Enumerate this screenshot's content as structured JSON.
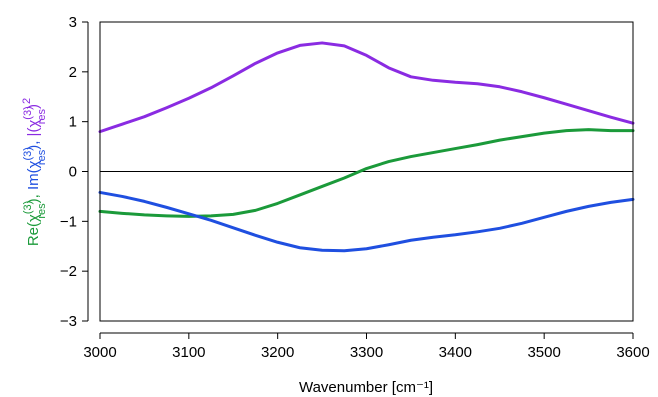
{
  "chart_data": {
    "type": "line",
    "title": "",
    "xlabel": "Wavenumber [cm⁻¹]",
    "ylabel_parts": {
      "re_prefix": "Re(χ",
      "im_prefix": "Im(χ",
      "abs_prefix": "|(χ",
      "superscript": "(3)",
      "subscript": "res",
      "close": ")",
      "separator": ", ",
      "square": "2"
    },
    "xlim": [
      3000,
      3600
    ],
    "ylim": [
      -3,
      3
    ],
    "xticks": [
      3000,
      3100,
      3200,
      3300,
      3400,
      3500,
      3600
    ],
    "yticks": [
      -3,
      -2,
      -1,
      0,
      1,
      2,
      3
    ],
    "zero_line": true,
    "grid": false,
    "series": [
      {
        "key": "abs",
        "color": "#8a2be2",
        "x": [
          3000,
          3025,
          3050,
          3075,
          3100,
          3125,
          3150,
          3175,
          3200,
          3225,
          3250,
          3275,
          3300,
          3325,
          3350,
          3375,
          3400,
          3425,
          3450,
          3475,
          3500,
          3525,
          3550,
          3575,
          3600
        ],
        "y": [
          0.8,
          0.95,
          1.1,
          1.28,
          1.47,
          1.68,
          1.92,
          2.17,
          2.38,
          2.53,
          2.58,
          2.52,
          2.33,
          2.08,
          1.9,
          1.83,
          1.79,
          1.76,
          1.7,
          1.6,
          1.48,
          1.35,
          1.22,
          1.09,
          0.97
        ]
      },
      {
        "key": "re",
        "color": "#1b9a3a",
        "x": [
          3000,
          3025,
          3050,
          3075,
          3100,
          3125,
          3150,
          3175,
          3200,
          3225,
          3250,
          3275,
          3300,
          3325,
          3350,
          3375,
          3400,
          3425,
          3450,
          3475,
          3500,
          3525,
          3550,
          3575,
          3600
        ],
        "y": [
          -0.8,
          -0.84,
          -0.87,
          -0.89,
          -0.9,
          -0.89,
          -0.86,
          -0.78,
          -0.64,
          -0.47,
          -0.3,
          -0.13,
          0.06,
          0.2,
          0.3,
          0.38,
          0.46,
          0.54,
          0.63,
          0.7,
          0.77,
          0.82,
          0.84,
          0.82,
          0.82
        ]
      },
      {
        "key": "im",
        "color": "#1f4fe0",
        "x": [
          3000,
          3025,
          3050,
          3075,
          3100,
          3125,
          3150,
          3175,
          3200,
          3225,
          3250,
          3275,
          3300,
          3325,
          3350,
          3375,
          3400,
          3425,
          3450,
          3475,
          3500,
          3525,
          3550,
          3575,
          3600
        ],
        "y": [
          -0.42,
          -0.5,
          -0.6,
          -0.72,
          -0.85,
          -0.98,
          -1.13,
          -1.28,
          -1.42,
          -1.53,
          -1.58,
          -1.59,
          -1.55,
          -1.47,
          -1.38,
          -1.32,
          -1.27,
          -1.21,
          -1.14,
          -1.04,
          -0.92,
          -0.8,
          -0.7,
          -0.62,
          -0.56
        ]
      }
    ]
  }
}
